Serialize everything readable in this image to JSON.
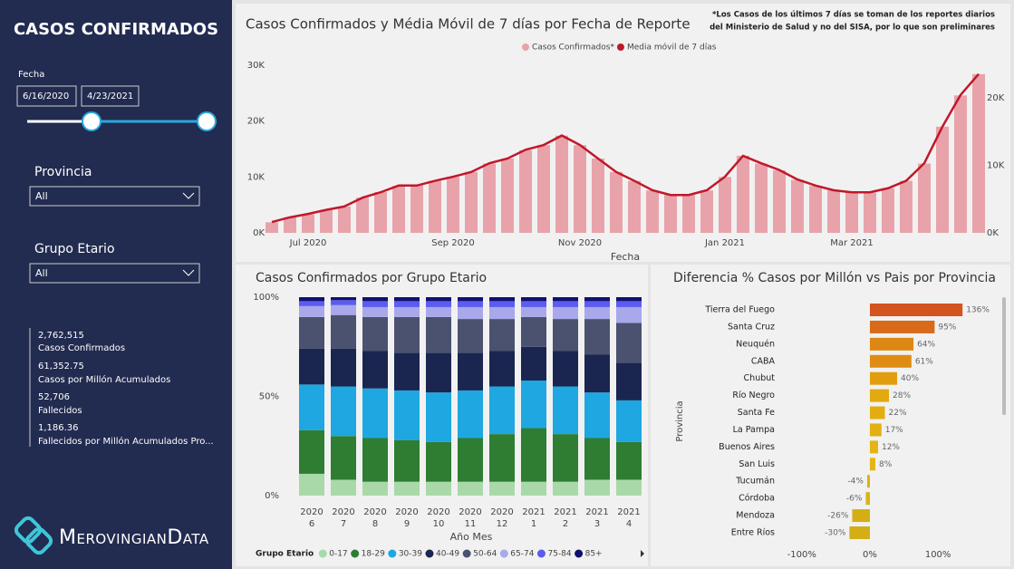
{
  "sidebar": {
    "title": "CASOS CONFIRMADOS",
    "date_label": "Fecha",
    "date_start": "6/16/2020",
    "date_end": "4/23/2021",
    "filters": [
      {
        "label": "Provincia",
        "value": "All"
      },
      {
        "label": "Grupo Etario",
        "value": "All"
      }
    ],
    "kpis": [
      {
        "value": "2,762,515",
        "label": "Casos Confirmados"
      },
      {
        "value": "61,352.75",
        "label": "Casos por Millón Acumulados"
      },
      {
        "value": "52,706",
        "label": "Fallecidos"
      },
      {
        "value": "1,186.36",
        "label": "Fallecidos por Millón Acumulados Pro..."
      }
    ],
    "logo": "MerovingianData"
  },
  "chart_data": [
    {
      "type": "bar_line",
      "title": "Casos Confirmados y Média Móvil de 7 días por Fecha de Reporte",
      "note": [
        "*Los Casos de los últimos 7 días se toman de los reportes diarios",
        "del Ministerio de Salud y no del SISA, por lo  que son preliminares"
      ],
      "x_label": "Fecha",
      "categories": [
        null,
        null,
        "Jul 2020",
        null,
        null,
        null,
        null,
        null,
        null,
        null,
        "Sep 2020",
        null,
        null,
        null,
        null,
        null,
        null,
        "Nov 2020",
        null,
        null,
        null,
        null,
        null,
        null,
        null,
        "Jan 2021",
        null,
        null,
        null,
        null,
        null,
        null,
        "Mar 2021",
        null,
        null,
        null,
        null,
        null,
        null,
        null
      ],
      "series": [
        {
          "name": "Casos Confirmados*",
          "color": "#e8a3aa",
          "type": "bar",
          "values": [
            1900,
            2800,
            3300,
            4100,
            4700,
            6300,
            7300,
            8400,
            8500,
            9300,
            10000,
            10900,
            12400,
            13300,
            14800,
            15700,
            17400,
            15700,
            13300,
            10900,
            9300,
            7600,
            6800,
            6800,
            7600,
            10000,
            13800,
            12400,
            11200,
            9500,
            8400,
            7600,
            7200,
            7200,
            8000,
            9300,
            12400,
            19000,
            24600,
            28400
          ]
        },
        {
          "name": "Media móvil de 7 días",
          "color": "#c0182a",
          "type": "line",
          "axis": "y2",
          "values": [
            1600,
            2300,
            2800,
            3400,
            3900,
            5200,
            6000,
            7000,
            7000,
            7700,
            8300,
            9000,
            10300,
            11000,
            12300,
            13000,
            14400,
            13000,
            11000,
            9000,
            7700,
            6300,
            5600,
            5600,
            6300,
            8300,
            11400,
            10300,
            9300,
            7900,
            7000,
            6300,
            6000,
            6000,
            6600,
            7700,
            10300,
            15700,
            20400,
            23500
          ]
        }
      ],
      "ylim": [
        0,
        30000
      ],
      "yticks": [
        {
          "value": 0,
          "label": "0K"
        },
        {
          "value": 10000,
          "label": "10K"
        },
        {
          "value": 20000,
          "label": "20K"
        },
        {
          "value": 30000,
          "label": "30K"
        }
      ],
      "y2lim": [
        0,
        24800
      ],
      "y2ticks": [
        {
          "value": 0,
          "label": "0K"
        },
        {
          "value": 10000,
          "label": "10K"
        },
        {
          "value": 20000,
          "label": "20K"
        }
      ],
      "grid": false
    },
    {
      "type": "stacked_bar_100",
      "title": "Casos Confirmados por Grupo Etario",
      "x_label": "Año Mes",
      "legend_title": "Grupo Etario",
      "categories": [
        [
          "2020",
          "6"
        ],
        [
          "2020",
          "7"
        ],
        [
          "2020",
          "8"
        ],
        [
          "2020",
          "9"
        ],
        [
          "2020",
          "10"
        ],
        [
          "2020",
          "11"
        ],
        [
          "2020",
          "12"
        ],
        [
          "2021",
          "1"
        ],
        [
          "2021",
          "2"
        ],
        [
          "2021",
          "3"
        ],
        [
          "2021",
          "4"
        ]
      ],
      "series": [
        {
          "name": "0-17",
          "color": "#a9d9a9",
          "values": [
            11,
            8,
            7,
            7,
            7,
            7,
            7,
            7,
            7,
            8,
            8
          ]
        },
        {
          "name": "18-29",
          "color": "#2e7d32",
          "values": [
            22,
            22,
            22,
            21,
            20,
            22,
            24,
            27,
            24,
            21,
            19
          ]
        },
        {
          "name": "30-39",
          "color": "#1ea7e0",
          "values": [
            23,
            25,
            25,
            25,
            25,
            24,
            24,
            24,
            24,
            23,
            21
          ]
        },
        {
          "name": "40-49",
          "color": "#1a2550",
          "values": [
            18,
            19,
            19,
            19,
            20,
            19,
            18,
            17,
            18,
            19,
            19
          ]
        },
        {
          "name": "50-64",
          "color": "#4a5270",
          "values": [
            16,
            17,
            17,
            18,
            18,
            17,
            16,
            15,
            16,
            18,
            20
          ]
        },
        {
          "name": "65-74",
          "color": "#a8a8ea",
          "values": [
            5.5,
            5,
            5,
            5,
            5,
            6,
            6,
            5,
            6,
            6,
            8
          ]
        },
        {
          "name": "75-84",
          "color": "#5c5cf0",
          "values": [
            2.5,
            2.5,
            3,
            3,
            3,
            3,
            3,
            3,
            3,
            3,
            3
          ]
        },
        {
          "name": "85+",
          "color": "#10106e",
          "values": [
            2,
            1.5,
            2,
            2,
            2,
            2,
            2,
            2,
            2,
            2,
            2
          ]
        }
      ],
      "ylim": [
        0,
        100
      ],
      "yticks": [
        {
          "value": 0,
          "label": "0%"
        },
        {
          "value": 50,
          "label": "50%"
        },
        {
          "value": 100,
          "label": "100%"
        }
      ],
      "grid": false
    },
    {
      "type": "hbar",
      "title": "Diferencia % Casos por Millón vs Pais por Provincia",
      "y_label": "Provincia",
      "categories": [
        "Tierra del Fuego",
        "Santa Cruz",
        "Neuquén",
        "CABA",
        "Chubut",
        "Río Negro",
        "Santa Fe",
        "La Pampa",
        "Buenos Aires",
        "San Luis",
        "Tucumán",
        "Córdoba",
        "Mendoza",
        "Entre Ríos"
      ],
      "values": [
        136,
        95,
        64,
        61,
        40,
        28,
        22,
        17,
        12,
        8,
        -4,
        -6,
        -26,
        -30
      ],
      "value_labels": [
        "136%",
        "95%",
        "64%",
        "61%",
        "40%",
        "28%",
        "22%",
        "17%",
        "12%",
        "8%",
        "-4%",
        "-6%",
        "-26%",
        "-30%"
      ],
      "colors": [
        "#d3541f",
        "#d96a1a",
        "#dd8714",
        "#de8c12",
        "#e09e0f",
        "#e2a910",
        "#e3ad10",
        "#e3b012",
        "#e3b414",
        "#e3b616",
        "#d9b218",
        "#d9b218",
        "#d4ae14",
        "#d4ae14"
      ],
      "xlim": [
        -133,
        173
      ],
      "xticks": [
        {
          "value": -100,
          "label": "-100%"
        },
        {
          "value": 0,
          "label": "0%"
        },
        {
          "value": 100,
          "label": "100%"
        }
      ],
      "grid": false
    }
  ]
}
